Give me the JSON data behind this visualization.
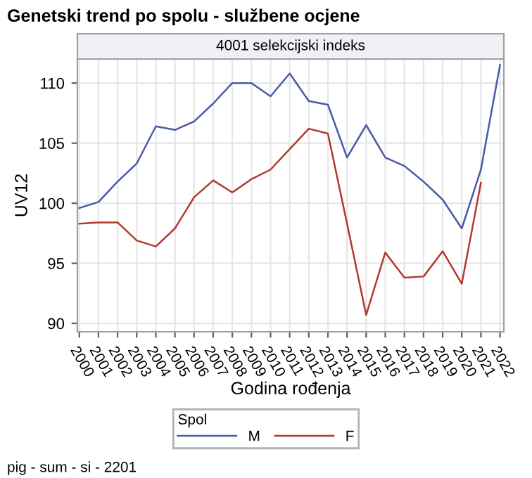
{
  "chart_data": {
    "type": "line",
    "title": "Genetski trend po spolu - službene ocjene",
    "subtitle": "4001 selekcijski indeks",
    "xlabel": "Godina rođenja",
    "ylabel": "UV12",
    "legend_title": "Spol",
    "annotations": [
      "pig - sum - si - 2201"
    ],
    "x": [
      2000,
      2001,
      2002,
      2003,
      2004,
      2005,
      2006,
      2007,
      2008,
      2009,
      2010,
      2011,
      2012,
      2013,
      2014,
      2015,
      2016,
      2017,
      2018,
      2019,
      2020,
      2021,
      2022
    ],
    "series": [
      {
        "name": "M",
        "color": "#4a5aa8",
        "values": [
          99.6,
          100.1,
          101.8,
          103.3,
          106.4,
          106.1,
          106.8,
          108.3,
          110.0,
          110.0,
          108.9,
          110.8,
          108.5,
          108.2,
          103.8,
          106.5,
          103.8,
          103.1,
          101.8,
          100.3,
          97.9,
          102.8,
          111.5
        ]
      },
      {
        "name": "F",
        "color": "#b03a2e",
        "values": [
          98.3,
          98.4,
          98.4,
          96.9,
          96.4,
          97.9,
          100.5,
          101.9,
          100.9,
          102.0,
          102.8,
          104.5,
          106.2,
          105.8,
          98.3,
          90.7,
          95.9,
          93.8,
          93.9,
          96.0,
          93.3,
          101.7,
          null
        ]
      }
    ],
    "xlim": [
      1999.9,
      2022.2
    ],
    "ylim": [
      89.3,
      112
    ],
    "xticks": [
      2000,
      2001,
      2002,
      2003,
      2004,
      2005,
      2006,
      2007,
      2008,
      2009,
      2010,
      2011,
      2012,
      2013,
      2014,
      2015,
      2016,
      2017,
      2018,
      2019,
      2020,
      2021,
      2022
    ],
    "yticks": [
      90,
      95,
      100,
      105,
      110
    ],
    "grid": true,
    "legend": "bottom",
    "marker": "none",
    "line_style": "solid"
  }
}
